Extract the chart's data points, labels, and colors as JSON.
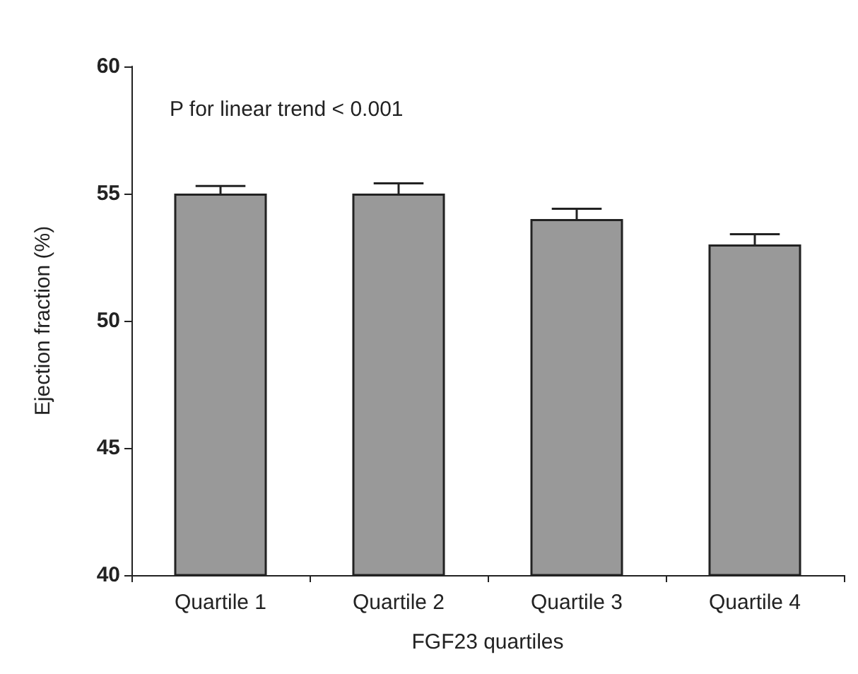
{
  "chart_data": {
    "type": "bar",
    "xlabel": "FGF23 quartiles",
    "ylabel": "Ejection fraction (%)",
    "categories": [
      "Quartile 1",
      "Quartile 2",
      "Quartile 3",
      "Quartile 4"
    ],
    "values": [
      55,
      55,
      54,
      53
    ],
    "errors": [
      0.3,
      0.4,
      0.4,
      0.4
    ],
    "color": "#999999",
    "ylim": [
      40,
      60
    ],
    "yticks": [
      40,
      45,
      50,
      55,
      60
    ],
    "grid": false,
    "annotations": [
      "P for linear trend < 0.001"
    ]
  }
}
